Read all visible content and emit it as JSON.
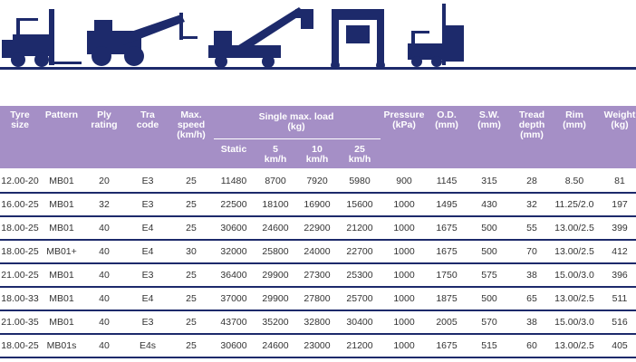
{
  "table": {
    "columns": [
      "Tyre\nsize",
      "Pattern",
      "Ply\nrating",
      "Tra\ncode",
      "Max.\nspeed\n(km/h)",
      "Static",
      "5\nkm/h",
      "10\nkm/h",
      "25\nkm/h",
      "Pressure\n(kPa)",
      "O.D.\n(mm)",
      "S.W.\n(mm)",
      "Tread\ndepth\n(mm)",
      "Rim\n(mm)",
      "Weight\n(kg)"
    ],
    "group_label": "Single max. load\n(kg)",
    "rows": [
      [
        "12.00-20",
        "MB01",
        "20",
        "E3",
        "25",
        "11480",
        "8700",
        "7920",
        "5980",
        "900",
        "1145",
        "315",
        "28",
        "8.50",
        "81"
      ],
      [
        "16.00-25",
        "MB01",
        "32",
        "E3",
        "25",
        "22500",
        "18100",
        "16900",
        "15600",
        "1000",
        "1495",
        "430",
        "32",
        "11.25/2.0",
        "197"
      ],
      [
        "18.00-25",
        "MB01",
        "40",
        "E4",
        "25",
        "30600",
        "24600",
        "22900",
        "21200",
        "1000",
        "1675",
        "500",
        "55",
        "13.00/2.5",
        "399"
      ],
      [
        "18.00-25",
        "MB01+",
        "40",
        "E4",
        "30",
        "32000",
        "25800",
        "24000",
        "22700",
        "1000",
        "1675",
        "500",
        "70",
        "13.00/2.5",
        "412"
      ],
      [
        "21.00-25",
        "MB01",
        "40",
        "E3",
        "25",
        "36400",
        "29900",
        "27300",
        "25300",
        "1000",
        "1750",
        "575",
        "38",
        "15.00/3.0",
        "396"
      ],
      [
        "18.00-33",
        "MB01",
        "40",
        "E4",
        "25",
        "37000",
        "29900",
        "27800",
        "25700",
        "1000",
        "1875",
        "500",
        "65",
        "13.00/2.5",
        "511"
      ],
      [
        "21.00-35",
        "MB01",
        "40",
        "E3",
        "25",
        "43700",
        "35200",
        "32800",
        "30400",
        "1000",
        "2005",
        "570",
        "38",
        "15.00/3.0",
        "516"
      ],
      [
        "18.00-25",
        "MB01s",
        "40",
        "E4s",
        "25",
        "30600",
        "24600",
        "23000",
        "21200",
        "1000",
        "1675",
        "515",
        "60",
        "13.00/2.5",
        "405"
      ]
    ]
  }
}
